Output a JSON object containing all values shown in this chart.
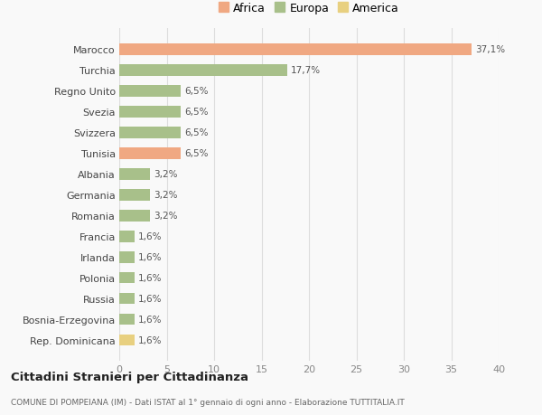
{
  "countries": [
    "Marocco",
    "Turchia",
    "Regno Unito",
    "Svezia",
    "Svizzera",
    "Tunisia",
    "Albania",
    "Germania",
    "Romania",
    "Francia",
    "Irlanda",
    "Polonia",
    "Russia",
    "Bosnia-Erzegovina",
    "Rep. Dominicana"
  ],
  "values": [
    37.1,
    17.7,
    6.5,
    6.5,
    6.5,
    6.5,
    3.2,
    3.2,
    3.2,
    1.6,
    1.6,
    1.6,
    1.6,
    1.6,
    1.6
  ],
  "labels": [
    "37,1%",
    "17,7%",
    "6,5%",
    "6,5%",
    "6,5%",
    "6,5%",
    "3,2%",
    "3,2%",
    "3,2%",
    "1,6%",
    "1,6%",
    "1,6%",
    "1,6%",
    "1,6%",
    "1,6%"
  ],
  "colors": [
    "#f0a882",
    "#a8c08a",
    "#a8c08a",
    "#a8c08a",
    "#a8c08a",
    "#f0a882",
    "#a8c08a",
    "#a8c08a",
    "#a8c08a",
    "#a8c08a",
    "#a8c08a",
    "#a8c08a",
    "#a8c08a",
    "#a8c08a",
    "#e8d080"
  ],
  "legend_labels": [
    "Africa",
    "Europa",
    "America"
  ],
  "legend_colors": [
    "#f0a882",
    "#a8c08a",
    "#e8d080"
  ],
  "xlim": [
    0,
    40
  ],
  "xticks": [
    0,
    5,
    10,
    15,
    20,
    25,
    30,
    35,
    40
  ],
  "title": "Cittadini Stranieri per Cittadinanza",
  "subtitle": "COMUNE DI POMPEIANA (IM) - Dati ISTAT al 1° gennaio di ogni anno - Elaborazione TUTTITALIA.IT",
  "bg_color": "#f9f9f9",
  "grid_color": "#dddddd",
  "bar_height": 0.55
}
